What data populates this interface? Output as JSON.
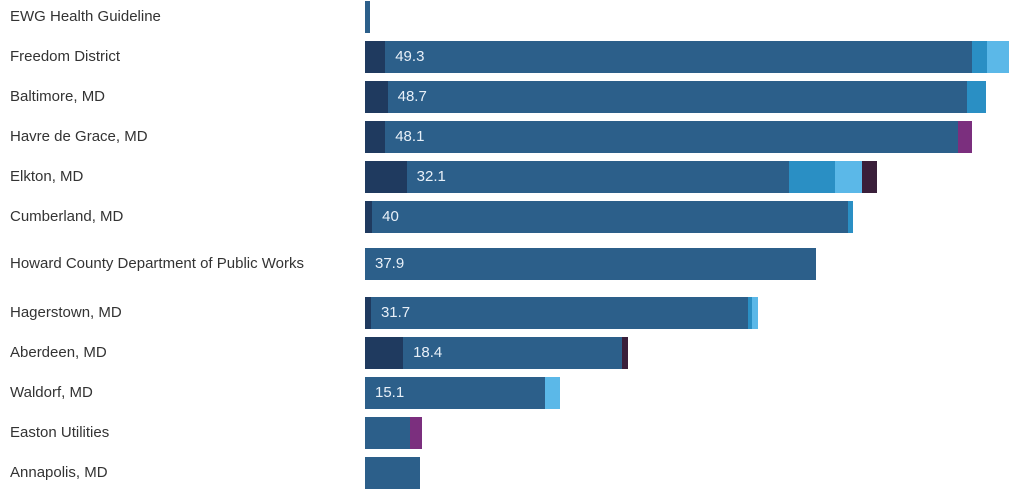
{
  "chart_data": {
    "type": "stacked-horizontal-bar",
    "categories": [
      "EWG Health Guideline",
      "Freedom District",
      "Baltimore, MD",
      "Havre de Grace, MD",
      "Elkton, MD",
      "Cumberland, MD",
      "Howard County Department of Public Works",
      "Hagerstown, MD",
      "Aberdeen, MD",
      "Waldorf, MD",
      "Easton Utilities",
      "Annapolis, MD"
    ],
    "xlim": [
      0,
      54.2
    ],
    "label_series": 1,
    "series": [
      {
        "color": "#1f3a5f",
        "values": [
          null,
          1.7,
          1.9,
          1.7,
          3.5,
          0.6,
          null,
          0.5,
          3.2,
          null,
          null,
          null
        ]
      },
      {
        "color": "#2c5f8a",
        "values": [
          0.4,
          49.3,
          48.7,
          48.1,
          32.1,
          40,
          37.9,
          31.7,
          18.4,
          15.1,
          3.8,
          4.6
        ]
      },
      {
        "color": "#2a8fc4",
        "values": [
          null,
          1.3,
          1.6,
          null,
          3.9,
          0.4,
          null,
          0.3,
          null,
          null,
          null,
          null
        ]
      },
      {
        "color": "#5bb8e8",
        "values": [
          null,
          1.8,
          null,
          null,
          2.3,
          null,
          null,
          0.5,
          null,
          1.3,
          null,
          null
        ]
      },
      {
        "color": "#7b2f7e",
        "values": [
          null,
          null,
          null,
          1.2,
          null,
          null,
          null,
          null,
          null,
          null,
          1.0,
          null
        ]
      },
      {
        "color": "#3a1f3a",
        "values": [
          null,
          null,
          null,
          null,
          1.2,
          null,
          null,
          null,
          0.5,
          null,
          null,
          null
        ]
      }
    ]
  }
}
